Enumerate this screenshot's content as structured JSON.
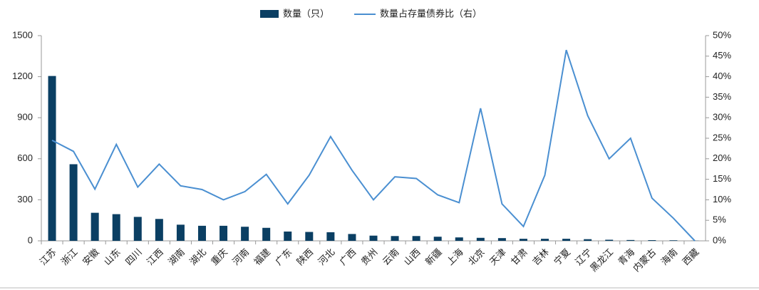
{
  "chart_data": {
    "type": "bar_line",
    "categories": [
      "江苏",
      "浙江",
      "安徽",
      "山东",
      "四川",
      "江西",
      "湖南",
      "湖北",
      "重庆",
      "河南",
      "福建",
      "广东",
      "陕西",
      "河北",
      "广西",
      "贵州",
      "云南",
      "山西",
      "新疆",
      "上海",
      "北京",
      "天津",
      "甘肃",
      "吉林",
      "宁夏",
      "辽宁",
      "黑龙江",
      "青海",
      "内蒙古",
      "海南",
      "西藏"
    ],
    "series": [
      {
        "name": "数量（只）",
        "type": "bar",
        "color": "#0b3f63",
        "values": [
          1205,
          560,
          205,
          195,
          175,
          160,
          118,
          110,
          110,
          103,
          95,
          68,
          65,
          63,
          50,
          38,
          35,
          35,
          30,
          25,
          22,
          20,
          15,
          15,
          15,
          12,
          8,
          6,
          5,
          4,
          1
        ]
      },
      {
        "name": "数量占存量债券比（右）",
        "type": "line",
        "axis": "y2",
        "color": "#4a8fd1",
        "values": [
          24.5,
          21.8,
          12.6,
          23.5,
          13.1,
          18.7,
          13.4,
          12.5,
          10.0,
          12.0,
          16.2,
          9.0,
          16.0,
          25.4,
          17.2,
          10.0,
          15.6,
          15.2,
          11.2,
          9.3,
          32.3,
          9.0,
          3.5,
          16.0,
          46.5,
          30.5,
          20.0,
          25.0,
          10.4,
          5.5,
          0
        ]
      }
    ],
    "ylim": [
      0,
      1500
    ],
    "yticks": [
      0,
      300,
      600,
      900,
      1200,
      1500
    ],
    "y2lim": [
      0,
      50
    ],
    "y2ticks": [
      {
        "value": 0,
        "label": "0%"
      },
      {
        "value": 5,
        "label": "5%"
      },
      {
        "value": 10,
        "label": "10%"
      },
      {
        "value": 15,
        "label": "15%"
      },
      {
        "value": 20,
        "label": "20%"
      },
      {
        "value": 25,
        "label": "25%"
      },
      {
        "value": 30,
        "label": "30%"
      },
      {
        "value": 35,
        "label": "35%"
      },
      {
        "value": 40,
        "label": "40%"
      },
      {
        "value": 45,
        "label": "45%"
      },
      {
        "value": 50,
        "label": "50%"
      }
    ],
    "legend": "top",
    "grid": false
  }
}
